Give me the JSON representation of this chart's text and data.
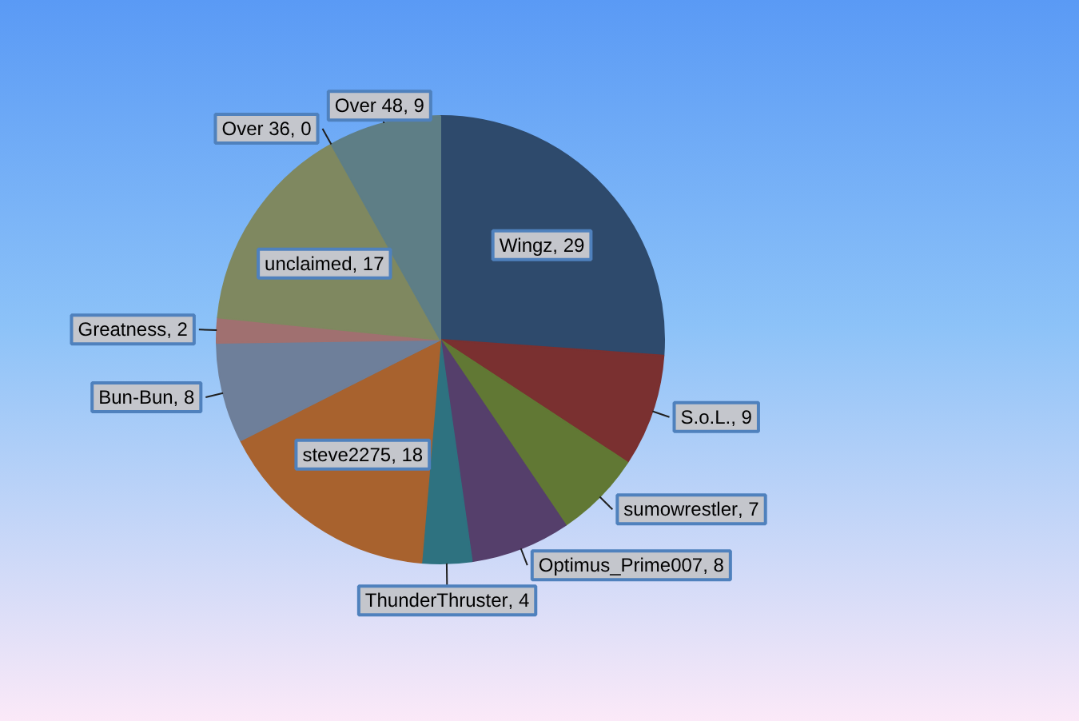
{
  "chart_data": {
    "type": "pie",
    "categories": [
      "Wingz",
      "S.o.L.",
      "sumowrestler",
      "Optimus_Prime007",
      "ThunderThruster",
      "steve2275",
      "Bun-Bun",
      "Greatness",
      "unclaimed",
      "Over 36",
      "Over 48"
    ],
    "values": [
      29,
      9,
      7,
      8,
      4,
      18,
      8,
      2,
      17,
      0,
      9
    ],
    "value_labels": [
      ", 29",
      ", 9",
      ", 7",
      ", 8",
      ", 4",
      ", 18",
      ", 8",
      ", 2",
      ", 17",
      ", 0",
      ", 9"
    ],
    "colors": [
      "#2e4a6c",
      "#7a3030",
      "#617834",
      "#553f6b",
      "#2e7280",
      "#a8622e",
      "#6e7f9a",
      "#a07070",
      "#7f8860",
      "#4a7a8a",
      "#5e7e86"
    ]
  }
}
